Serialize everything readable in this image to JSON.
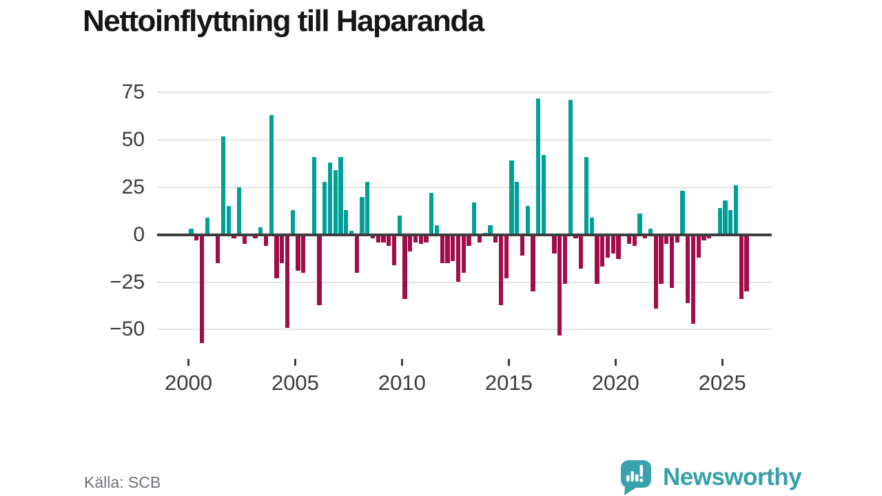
{
  "header": {
    "title": "Nettoinflyttning till Haparanda"
  },
  "footer": {
    "source": "Källa: SCB",
    "logo_text": "Newsworthy"
  },
  "colors": {
    "background": "#FFFFFF",
    "positive": "#00A099",
    "negative": "#A10D49",
    "grid": "#E4E4E4",
    "zero_line": "#3D3D3D",
    "axis_text": "#3A3A3A",
    "title_text": "#161616",
    "source_text": "#6F6F78",
    "logo": "#3BA2AB"
  },
  "chart_data": {
    "type": "bar",
    "title": "Nettoinflyttning till Haparanda",
    "frequency": "quarterly",
    "start": "2000-Q1",
    "end": "2026-Q1",
    "grid": "horizontal",
    "legend": "none",
    "positive_color": "#00A099",
    "negative_color": "#A10D49",
    "y_ticks": [
      75,
      50,
      25,
      0,
      -25,
      -50
    ],
    "y_tick_labels": [
      "75",
      "50",
      "25",
      "0",
      "−25",
      "−50"
    ],
    "x_tick_years": [
      2000,
      2005,
      2010,
      2015,
      2020,
      2025
    ],
    "x_tick_labels": [
      "2000",
      "2005",
      "2010",
      "2015",
      "2020",
      "2025"
    ],
    "ylim": [
      -62,
      82
    ],
    "values": [
      {
        "period": "2000-Q1",
        "value": 3
      },
      {
        "period": "2000-Q2",
        "value": -3
      },
      {
        "period": "2000-Q3",
        "value": -57
      },
      {
        "period": "2000-Q4",
        "value": 9
      },
      {
        "period": "2001-Q1",
        "value": 0
      },
      {
        "period": "2001-Q2",
        "value": -15
      },
      {
        "period": "2001-Q3",
        "value": 52
      },
      {
        "period": "2001-Q4",
        "value": 15
      },
      {
        "period": "2002-Q1",
        "value": -2
      },
      {
        "period": "2002-Q2",
        "value": 25
      },
      {
        "period": "2002-Q3",
        "value": -5
      },
      {
        "period": "2002-Q4",
        "value": 0
      },
      {
        "period": "2003-Q1",
        "value": -2
      },
      {
        "period": "2003-Q2",
        "value": 4
      },
      {
        "period": "2003-Q3",
        "value": -6
      },
      {
        "period": "2003-Q4",
        "value": 63
      },
      {
        "period": "2004-Q1",
        "value": -23
      },
      {
        "period": "2004-Q2",
        "value": -15
      },
      {
        "period": "2004-Q3",
        "value": -49
      },
      {
        "period": "2004-Q4",
        "value": 13
      },
      {
        "period": "2005-Q1",
        "value": -19
      },
      {
        "period": "2005-Q2",
        "value": -20
      },
      {
        "period": "2005-Q3",
        "value": 0
      },
      {
        "period": "2005-Q4",
        "value": 41
      },
      {
        "period": "2006-Q1",
        "value": -37
      },
      {
        "period": "2006-Q2",
        "value": 28
      },
      {
        "period": "2006-Q3",
        "value": 38
      },
      {
        "period": "2006-Q4",
        "value": 34
      },
      {
        "period": "2007-Q1",
        "value": 41
      },
      {
        "period": "2007-Q2",
        "value": 13
      },
      {
        "period": "2007-Q3",
        "value": 2
      },
      {
        "period": "2007-Q4",
        "value": -20
      },
      {
        "period": "2008-Q1",
        "value": 20
      },
      {
        "period": "2008-Q2",
        "value": 28
      },
      {
        "period": "2008-Q3",
        "value": -2
      },
      {
        "period": "2008-Q4",
        "value": -4
      },
      {
        "period": "2009-Q1",
        "value": -4
      },
      {
        "period": "2009-Q2",
        "value": -6
      },
      {
        "period": "2009-Q3",
        "value": -16
      },
      {
        "period": "2009-Q4",
        "value": 10
      },
      {
        "period": "2010-Q1",
        "value": -34
      },
      {
        "period": "2010-Q2",
        "value": -9
      },
      {
        "period": "2010-Q3",
        "value": -4
      },
      {
        "period": "2010-Q4",
        "value": -5
      },
      {
        "period": "2011-Q1",
        "value": -4
      },
      {
        "period": "2011-Q2",
        "value": 22
      },
      {
        "period": "2011-Q3",
        "value": 5
      },
      {
        "period": "2011-Q4",
        "value": -15
      },
      {
        "period": "2012-Q1",
        "value": -15
      },
      {
        "period": "2012-Q2",
        "value": -14
      },
      {
        "period": "2012-Q3",
        "value": -25
      },
      {
        "period": "2012-Q4",
        "value": -20
      },
      {
        "period": "2013-Q1",
        "value": -6
      },
      {
        "period": "2013-Q2",
        "value": 17
      },
      {
        "period": "2013-Q3",
        "value": -4
      },
      {
        "period": "2013-Q4",
        "value": 1
      },
      {
        "period": "2014-Q1",
        "value": 5
      },
      {
        "period": "2014-Q2",
        "value": -4
      },
      {
        "period": "2014-Q3",
        "value": -37
      },
      {
        "period": "2014-Q4",
        "value": -23
      },
      {
        "period": "2015-Q1",
        "value": 39
      },
      {
        "period": "2015-Q2",
        "value": 28
      },
      {
        "period": "2015-Q3",
        "value": -11
      },
      {
        "period": "2015-Q4",
        "value": 15
      },
      {
        "period": "2016-Q1",
        "value": -30
      },
      {
        "period": "2016-Q2",
        "value": 72
      },
      {
        "period": "2016-Q3",
        "value": 42
      },
      {
        "period": "2016-Q4",
        "value": 0
      },
      {
        "period": "2017-Q1",
        "value": -10
      },
      {
        "period": "2017-Q2",
        "value": -53
      },
      {
        "period": "2017-Q3",
        "value": -26
      },
      {
        "period": "2017-Q4",
        "value": 71
      },
      {
        "period": "2018-Q1",
        "value": -2
      },
      {
        "period": "2018-Q2",
        "value": -18
      },
      {
        "period": "2018-Q3",
        "value": 41
      },
      {
        "period": "2018-Q4",
        "value": 9
      },
      {
        "period": "2019-Q1",
        "value": -26
      },
      {
        "period": "2019-Q2",
        "value": -17
      },
      {
        "period": "2019-Q3",
        "value": -12
      },
      {
        "period": "2019-Q4",
        "value": -10
      },
      {
        "period": "2020-Q1",
        "value": -13
      },
      {
        "period": "2020-Q2",
        "value": 0
      },
      {
        "period": "2020-Q3",
        "value": -5
      },
      {
        "period": "2020-Q4",
        "value": -6
      },
      {
        "period": "2021-Q1",
        "value": 11
      },
      {
        "period": "2021-Q2",
        "value": -2
      },
      {
        "period": "2021-Q3",
        "value": 3
      },
      {
        "period": "2021-Q4",
        "value": -39
      },
      {
        "period": "2022-Q1",
        "value": -26
      },
      {
        "period": "2022-Q2",
        "value": -5
      },
      {
        "period": "2022-Q3",
        "value": -28
      },
      {
        "period": "2022-Q4",
        "value": -4
      },
      {
        "period": "2023-Q1",
        "value": 23
      },
      {
        "period": "2023-Q2",
        "value": -36
      },
      {
        "period": "2023-Q3",
        "value": -47
      },
      {
        "period": "2023-Q4",
        "value": -12
      },
      {
        "period": "2024-Q1",
        "value": -3
      },
      {
        "period": "2024-Q2",
        "value": -2
      },
      {
        "period": "2024-Q3",
        "value": 0
      },
      {
        "period": "2024-Q4",
        "value": 14
      },
      {
        "period": "2025-Q1",
        "value": 18
      },
      {
        "period": "2025-Q2",
        "value": 13
      },
      {
        "period": "2025-Q3",
        "value": 26
      },
      {
        "period": "2025-Q4",
        "value": -34
      },
      {
        "period": "2026-Q1",
        "value": -30
      }
    ]
  }
}
